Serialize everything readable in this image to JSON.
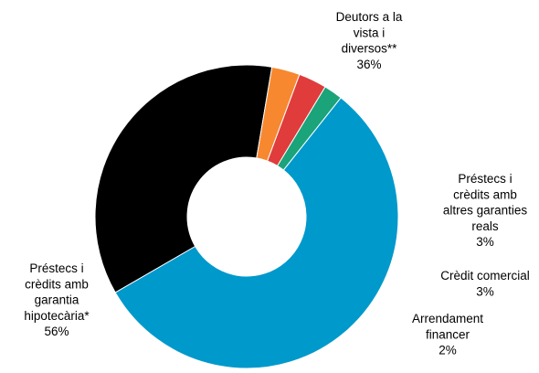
{
  "chart_data": {
    "type": "pie",
    "variant": "donut",
    "title": "",
    "slices": [
      {
        "label_lines": [
          "Deutors a la",
          "vista i",
          "diversos**"
        ],
        "value_label": "36%",
        "value": 36,
        "color": "#000000"
      },
      {
        "label_lines": [
          "Préstecs i",
          "crèdits amb",
          "altres garanties",
          "reals"
        ],
        "value_label": "3%",
        "value": 3,
        "color": "#F7882F"
      },
      {
        "label_lines": [
          "Crèdit comercial"
        ],
        "value_label": "3%",
        "value": 3,
        "color": "#E03C3C"
      },
      {
        "label_lines": [
          "Arrendament",
          "financer"
        ],
        "value_label": "2%",
        "value": 2,
        "color": "#1BA37A"
      },
      {
        "label_lines": [
          "Préstecs i",
          "crèdits amb",
          "garantia",
          "hipotecària*"
        ],
        "value_label": "56%",
        "value": 56,
        "color": "#0099CC"
      }
    ]
  }
}
